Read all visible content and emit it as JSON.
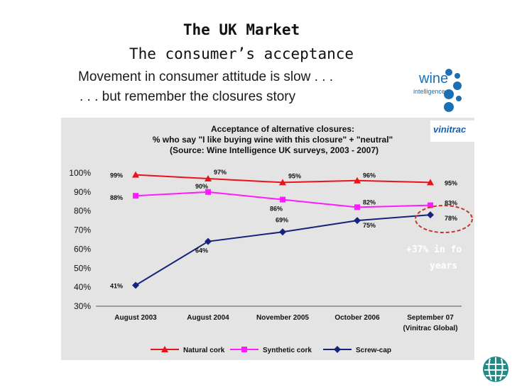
{
  "slide": {
    "title": "The UK Market",
    "subtitle": "The consumer’s acceptance",
    "banner_line1": "Movement in consumer attitude is slow . . .",
    "banner_line2": ". . . but remember the closures story"
  },
  "logos": {
    "wine_intelligence_word": "wine",
    "wine_intelligence_sub": "intelligence",
    "vinitrac": "vinitrac"
  },
  "colors": {
    "natural_cork": "#e8141b",
    "synthetic_cork": "#ff1aff",
    "screw_cap": "#16237a",
    "annotation_circle": "#c0392b"
  },
  "chart_data": {
    "type": "line",
    "title_lines": [
      "Acceptance of alternative closures:",
      "% who say \"I like buying wine with this closure\" + \"neutral\"",
      "(Source: Wine Intelligence UK surveys, 2003 - 2007)"
    ],
    "categories": [
      "August 2003",
      "August 2004",
      "November 2005",
      "October 2006",
      "September 07"
    ],
    "category_sublabel": "(Vinitrac Global)",
    "y_ticks": [
      "100%",
      "90%",
      "80%",
      "70%",
      "60%",
      "50%",
      "40%",
      "30%"
    ],
    "ylim": [
      30,
      100
    ],
    "series": [
      {
        "name": "Natural cork",
        "values": [
          99,
          97,
          95,
          96,
          95
        ],
        "labels": [
          "99%",
          "97%",
          "95%",
          "96%",
          "95%"
        ],
        "marker": "triangle"
      },
      {
        "name": "Synthetic cork",
        "values": [
          88,
          90,
          86,
          82,
          83
        ],
        "labels": [
          "88%",
          "90%",
          "86%",
          "82%",
          "83%"
        ],
        "marker": "square"
      },
      {
        "name": "Screw-cap",
        "values": [
          41,
          64,
          69,
          75,
          78
        ],
        "labels": [
          "41%",
          "64%",
          "69%",
          "75%",
          "78%"
        ],
        "marker": "diamond"
      }
    ],
    "annotation": {
      "line1": "+37% in fo",
      "line2": "years"
    },
    "grid": false,
    "legend_position": "bottom"
  }
}
